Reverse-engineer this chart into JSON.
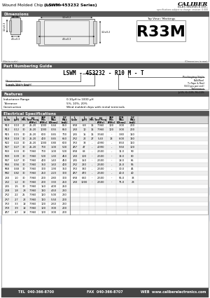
{
  "title_plain": "Wound Molded Chip Inductor",
  "title_bold": " (LSWM-453232 Series)",
  "company": "CALIBER",
  "company_sub": "ELECTRONICS INC.",
  "company_tagline": "specifications subject to change  revision: 0.000",
  "bg_color": "#ffffff",
  "dimensions_section": "Dimensions",
  "top_view_label": "Top View / Markings",
  "marking_text": "R33M",
  "not_to_scale": "(Not to scale)",
  "dim_in_mm": "(Dimensions in mm)",
  "part_numbering_section": "Part Numbering Guide",
  "part_number_display": "LSWM - 453232 - R10 M - T",
  "features_section": "Features",
  "features": [
    [
      "Inductance Range",
      "0.10μH to 1000 μH"
    ],
    [
      "Tolerance",
      "5%, 10%, 20%"
    ],
    [
      "Construction",
      "Wind molded chips with metal terminals"
    ]
  ],
  "elec_spec_section": "Electrical Specifications",
  "col_headers_left": [
    "L\nCode",
    "L\n(μH)",
    "Q\nMin",
    "LQ\nTest Freq\n(MHz)",
    "SRF\nMin\n(MHz)",
    "DCR\nMax\n(Ohms)",
    "IDC\nMax\n(mA)"
  ],
  "col_headers_right": [
    "L\nCode",
    "L\n(μH)",
    "Q\nMin",
    "LQ\nTest Freq\n(MHz)",
    "SRF\nMin\n(MHz)",
    "DCR\nMax\n(Ohms)",
    "IDC\nMax\n(mA)"
  ],
  "table_data": [
    [
      "R10",
      "0.10",
      "20",
      "25.20",
      "1000",
      "0.44",
      "850",
      "6R8",
      "6.8",
      "16",
      "7.960",
      "100",
      "3.00",
      "200"
    ],
    [
      "R12",
      "0.12",
      "30",
      "25.20",
      "1000",
      "0.55",
      "850",
      "1R0",
      "10",
      "16",
      "7.960",
      "100",
      "3.00",
      "200"
    ],
    [
      "R15",
      "0.15",
      "30",
      "25.20",
      "600",
      "0.65",
      "700",
      "1R5",
      "15",
      "16",
      "3.560",
      "-",
      "3.80",
      "160"
    ],
    [
      "R18",
      "0.18",
      "30",
      "25.20",
      "400",
      "0.65",
      "650",
      "2R2",
      "22",
      "27",
      "5.43",
      "13",
      "6.00",
      "130"
    ],
    [
      "R22",
      "0.22",
      "30",
      "25.20",
      "1000",
      "0.80",
      "600",
      "3R3",
      "33",
      "-",
      "4.990",
      "-",
      "8.50",
      "110"
    ],
    [
      "R27",
      "0.27",
      "30",
      "25.20",
      "700",
      "1.00",
      "500",
      "4R7",
      "47",
      "-",
      "4.990",
      "-",
      "9.50",
      "100"
    ],
    [
      "R33",
      "0.33",
      "30",
      "7.960",
      "700",
      "1.00",
      "500",
      "6R8",
      "68",
      "-",
      "2.500",
      "-",
      "11.0",
      "90"
    ],
    [
      "R39",
      "0.39",
      "30",
      "7.960",
      "500",
      "1.30",
      "450",
      "1R0",
      "100",
      "-",
      "2.500",
      "-",
      "13.0",
      "80"
    ],
    [
      "R47",
      "0.47",
      "30",
      "7.960",
      "400",
      "1.40",
      "450",
      "1R5",
      "150",
      "-",
      "2.500",
      "-",
      "18.0",
      "65"
    ],
    [
      "R56",
      "0.56",
      "30",
      "7.960",
      "350",
      "1.60",
      "400",
      "2R2",
      "220",
      "-",
      "2.500",
      "-",
      "25.0",
      "55"
    ],
    [
      "R68",
      "0.68",
      "30",
      "7.960",
      "300",
      "1.90",
      "350",
      "3R3",
      "330",
      "-",
      "2.500",
      "-",
      "30.0",
      "45"
    ],
    [
      "R82",
      "0.82",
      "30",
      "7.960",
      "250",
      "2.20",
      "300",
      "4R7",
      "470",
      "-",
      "2.500",
      "-",
      "40.0",
      "40"
    ],
    [
      "1R0",
      "1.0",
      "30",
      "7.960",
      "200",
      "2.80",
      "300",
      "6R8",
      "680",
      "-",
      "2.500",
      "-",
      "55.0",
      "33"
    ],
    [
      "1R2",
      "1.2",
      "30",
      "7.960",
      "200",
      "3.30",
      "250",
      "1R0",
      "1000",
      "-",
      "2.500",
      "-",
      "75.0",
      "28"
    ],
    [
      "1R5",
      "1.5",
      "30",
      "7.960",
      "150",
      "4.00",
      "250",
      "",
      "",
      "",
      "",
      "",
      "",
      ""
    ],
    [
      "1R8",
      "1.8",
      "28",
      "7.960",
      "130",
      "4.50",
      "220",
      "",
      "",
      "",
      "",
      "",
      "",
      ""
    ],
    [
      "2R2",
      "2.2",
      "25",
      "7.960",
      "120",
      "5.00",
      "220",
      "",
      "",
      "",
      "",
      "",
      "",
      ""
    ],
    [
      "2R7",
      "2.7",
      "22",
      "7.960",
      "110",
      "5.50",
      "200",
      "",
      "",
      "",
      "",
      "",
      "",
      ""
    ],
    [
      "3R3",
      "3.3",
      "18",
      "7.960",
      "100",
      "2.60",
      "220",
      "",
      "",
      "",
      "",
      "",
      "",
      ""
    ],
    [
      "3R9",
      "3.9",
      "18",
      "7.960",
      "100",
      "3.00",
      "200",
      "",
      "",
      "",
      "",
      "",
      "",
      ""
    ],
    [
      "4R7",
      "4.7",
      "18",
      "7.960",
      "100",
      "3.00",
      "200",
      "",
      "",
      "",
      "",
      "",
      "",
      ""
    ]
  ],
  "footer_tel": "TEL  040-366-8700",
  "footer_fax": "FAX  040-366-8707",
  "footer_web": "WEB  www.caliberelectronics.com",
  "watermark_text": "CALIBER",
  "packaging_options": [
    "Bulk/Reel",
    "T=Tape & Reel",
    "(500 pcs per reel)"
  ],
  "tolerance_options": [
    "J=5%, K=10%, M=20%"
  ]
}
